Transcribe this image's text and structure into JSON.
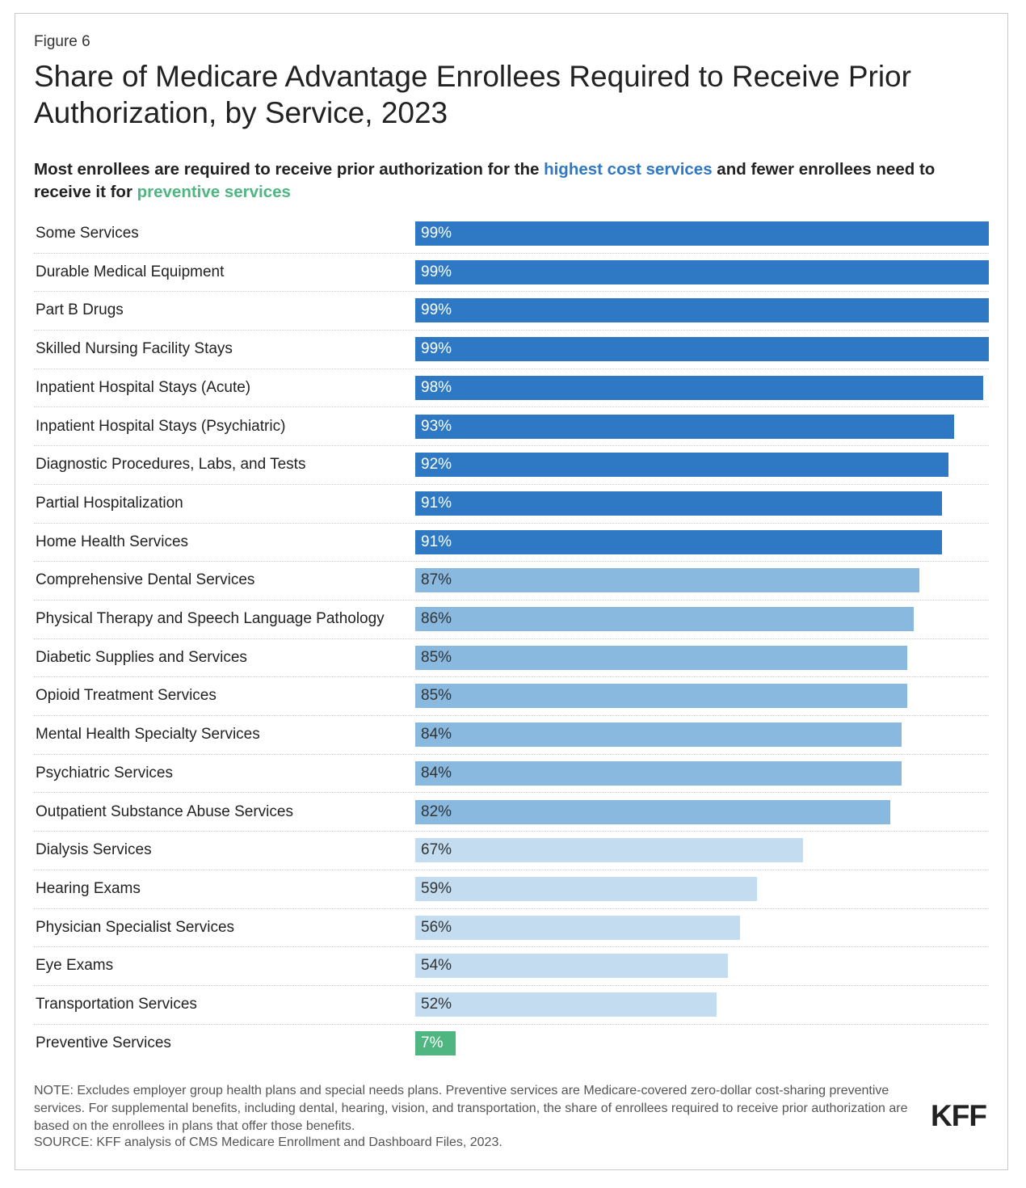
{
  "figure_label": "Figure 6",
  "title": "Share of Medicare Advantage Enrollees Required to Receive Prior Authorization, by Service, 2023",
  "subtitle": {
    "part1": "Most enrollees are required to receive prior authorization for the ",
    "highlight1": "highest cost services",
    "part2": " and fewer enrollees need to receive it for ",
    "highlight2": "preventive services"
  },
  "note": "NOTE: Excludes employer group health plans and special needs plans. Preventive services are Medicare-covered zero-dollar cost-sharing preventive services. For supplemental benefits, including dental, hearing, vision, and transportation, the share of enrollees required to receive prior authorization are based on the enrollees in plans that offer those benefits.",
  "source": "SOURCE: KFF analysis of CMS Medicare Enrollment and Dashboard Files, 2023.",
  "logo": "KFF",
  "colors": {
    "dark": "#2f78c4",
    "mid": "#8ab9df",
    "light": "#c4dcf0",
    "green": "#4fb682"
  },
  "chart_data": {
    "type": "bar",
    "orientation": "horizontal",
    "xlim": [
      0,
      100
    ],
    "grid": false,
    "categories": [
      "Some Services",
      "Durable Medical Equipment",
      "Part B Drugs",
      "Skilled Nursing Facility Stays",
      "Inpatient Hospital Stays (Acute)",
      "Inpatient Hospital Stays (Psychiatric)",
      "Diagnostic Procedures, Labs, and Tests",
      "Partial Hospitalization",
      "Home Health Services",
      "Comprehensive Dental Services",
      "Physical Therapy and Speech Language Pathology",
      "Diabetic Supplies and Services",
      "Opioid Treatment Services",
      "Mental Health Specialty Services",
      "Psychiatric Services",
      "Outpatient Substance Abuse Services",
      "Dialysis Services",
      "Hearing Exams",
      "Physician Specialist Services",
      "Eye Exams",
      "Transportation Services",
      "Preventive Services"
    ],
    "values": [
      99,
      99,
      99,
      99,
      98,
      93,
      92,
      91,
      91,
      87,
      86,
      85,
      85,
      84,
      84,
      82,
      67,
      59,
      56,
      54,
      52,
      7
    ],
    "labels": [
      "99%",
      "99%",
      "99%",
      "99%",
      "98%",
      "93%",
      "92%",
      "91%",
      "91%",
      "87%",
      "86%",
      "85%",
      "85%",
      "84%",
      "84%",
      "82%",
      "67%",
      "59%",
      "56%",
      "54%",
      "52%",
      "7%"
    ],
    "color_groups": [
      "dark",
      "dark",
      "dark",
      "dark",
      "dark",
      "dark",
      "dark",
      "dark",
      "dark",
      "mid",
      "mid",
      "mid",
      "mid",
      "mid",
      "mid",
      "mid",
      "light",
      "light",
      "light",
      "light",
      "light",
      "green"
    ]
  }
}
